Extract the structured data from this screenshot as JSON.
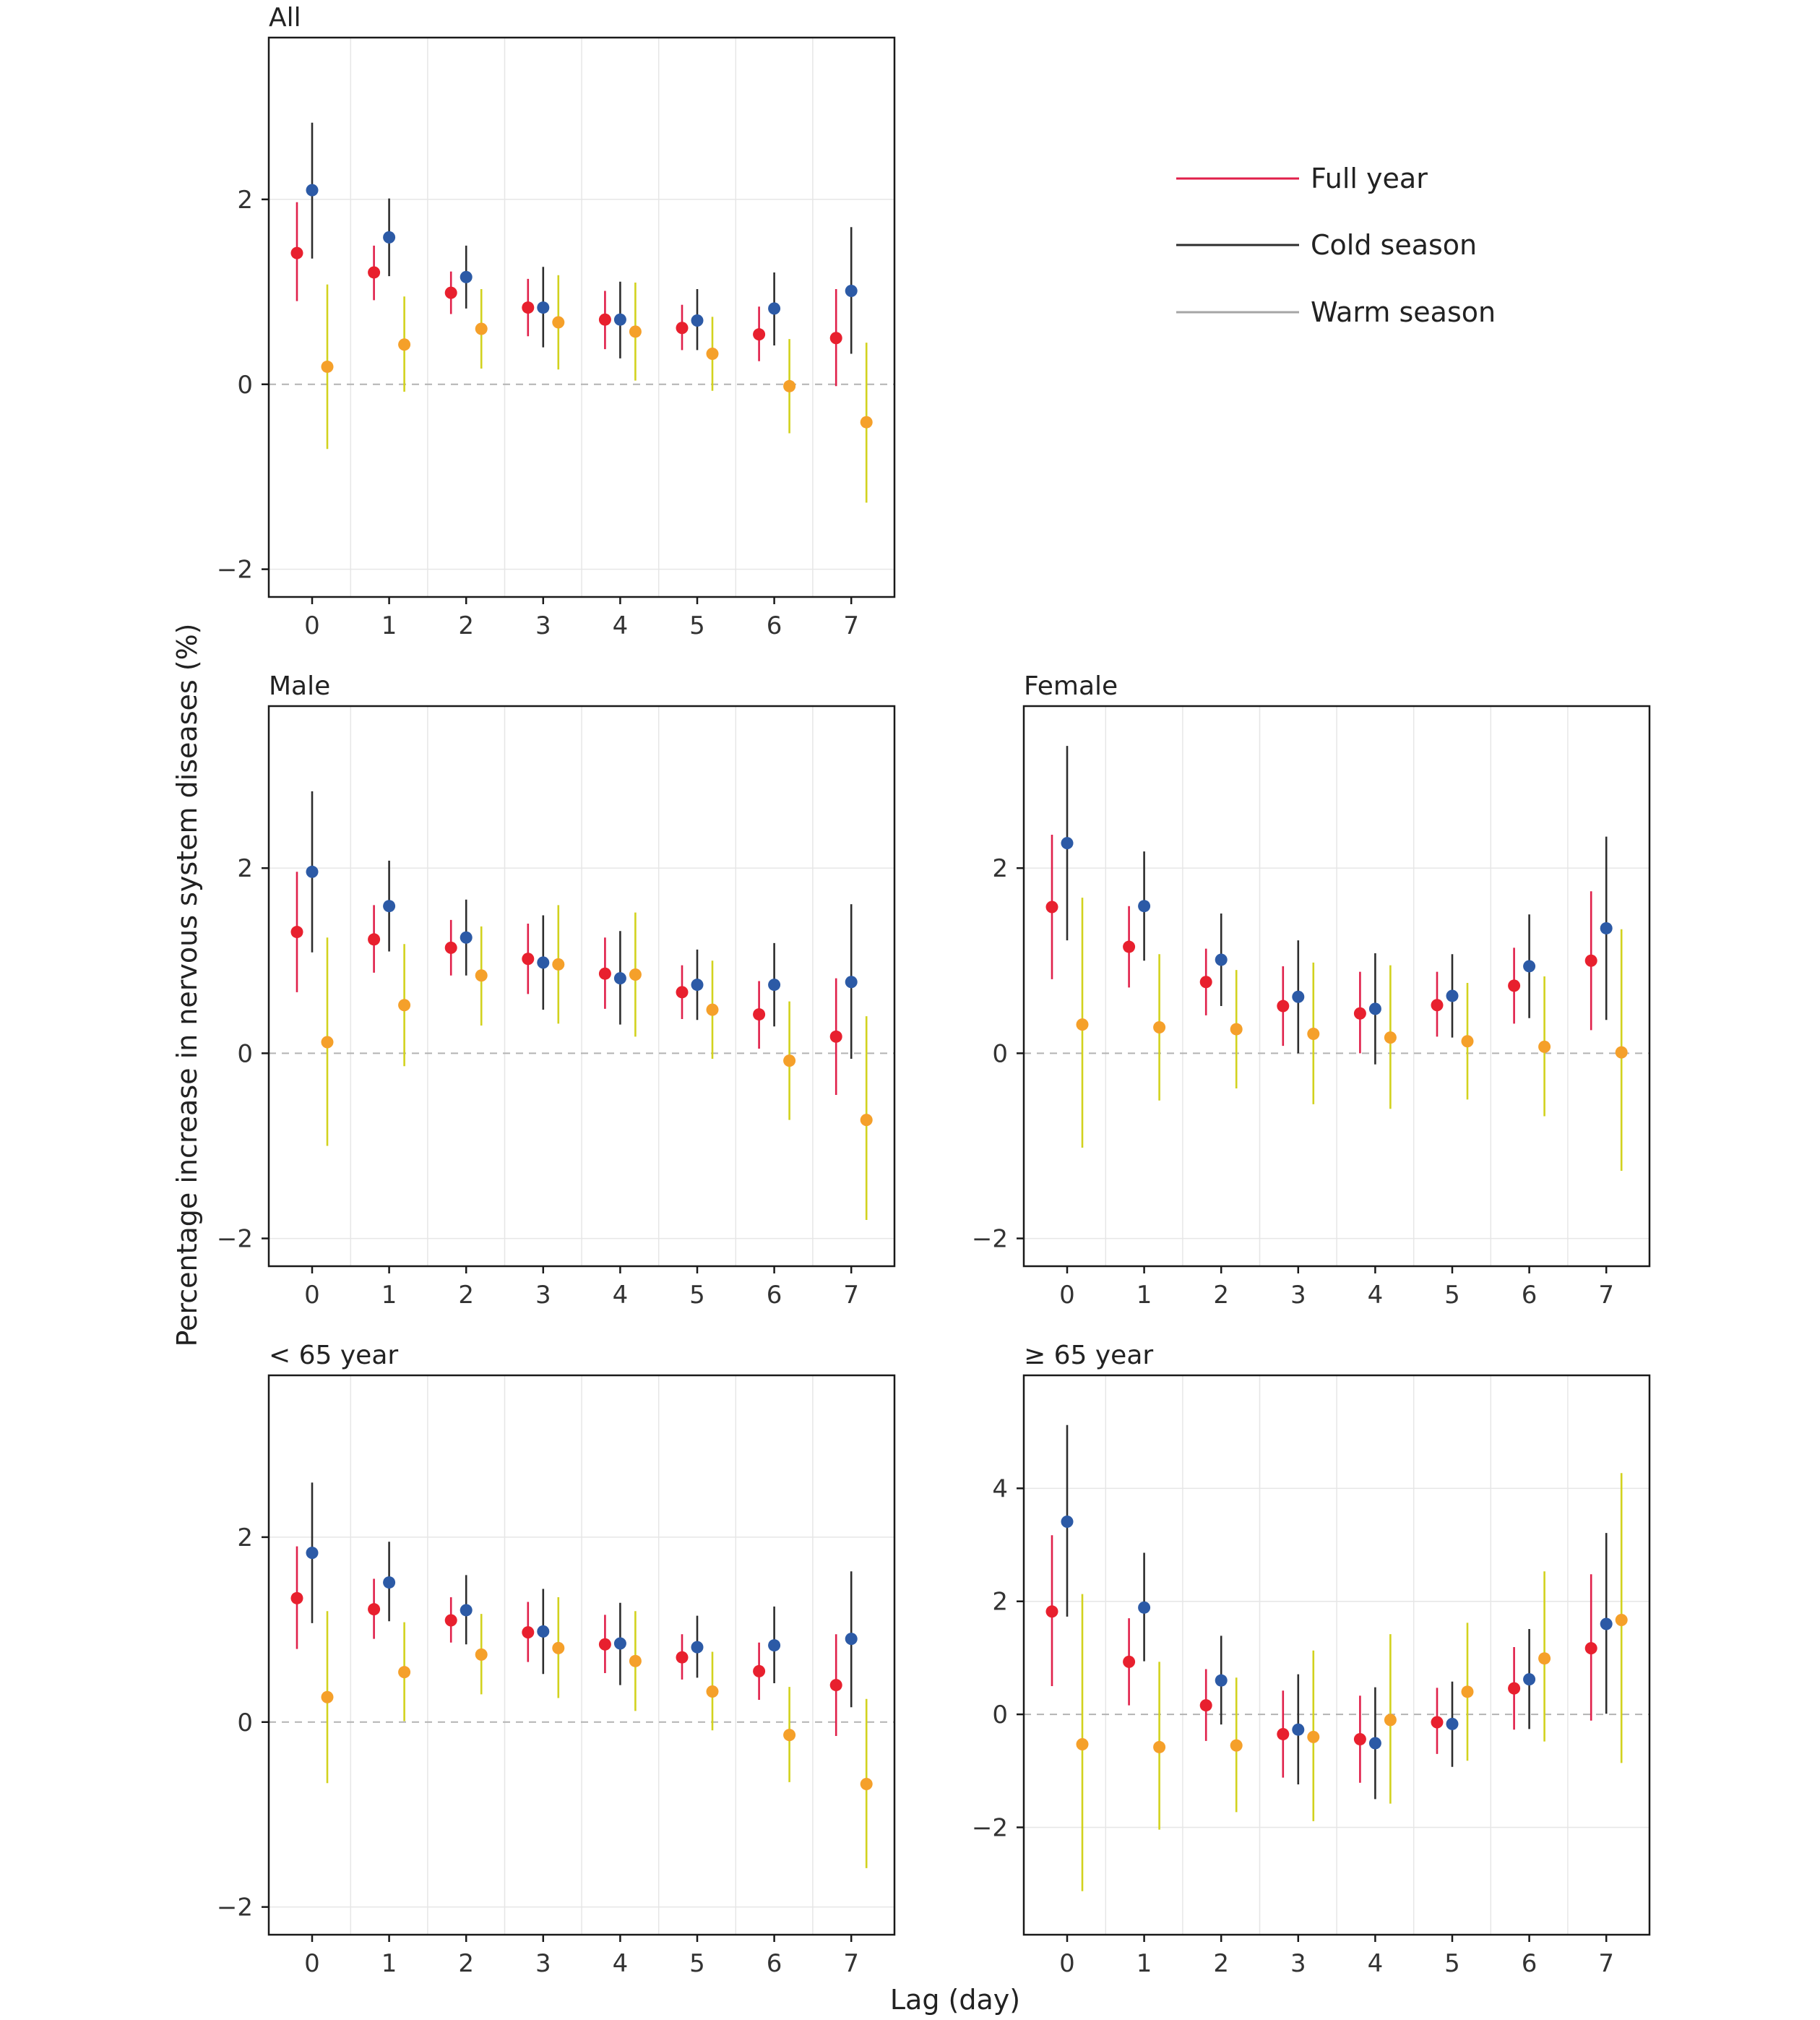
{
  "colors": {
    "full_year": {
      "line": "#e0204a",
      "point": "#e8202e"
    },
    "cold_season": {
      "line": "#2d2d2d",
      "point": "#2c5aa6"
    },
    "warm_season": {
      "line": "#d2d21e",
      "point": "#f5a02a"
    }
  },
  "chart_data": [
    {
      "type": "scatter",
      "subtype": "point-range",
      "title": "All",
      "x": [
        0,
        1,
        2,
        3,
        4,
        5,
        6,
        7
      ],
      "ylim": [
        -2.3,
        3.75
      ],
      "yticks": [
        -2,
        0,
        2
      ],
      "series": [
        {
          "name": "Full year",
          "values": [
            1.42,
            1.21,
            0.99,
            0.83,
            0.7,
            0.61,
            0.54,
            0.5
          ],
          "lower": [
            0.9,
            0.91,
            0.76,
            0.52,
            0.38,
            0.37,
            0.25,
            -0.02
          ],
          "upper": [
            1.97,
            1.5,
            1.22,
            1.14,
            1.01,
            0.86,
            0.84,
            1.03
          ]
        },
        {
          "name": "Cold season",
          "values": [
            2.1,
            1.59,
            1.16,
            0.83,
            0.7,
            0.69,
            0.82,
            1.01
          ],
          "lower": [
            1.36,
            1.17,
            0.82,
            0.4,
            0.28,
            0.37,
            0.42,
            0.33
          ],
          "upper": [
            2.83,
            2.01,
            1.5,
            1.27,
            1.11,
            1.03,
            1.21,
            1.7
          ]
        },
        {
          "name": "Warm season",
          "values": [
            0.19,
            0.43,
            0.6,
            0.67,
            0.57,
            0.33,
            -0.02,
            -0.41
          ],
          "lower": [
            -0.7,
            -0.08,
            0.17,
            0.16,
            0.04,
            -0.07,
            -0.53,
            -1.28
          ],
          "upper": [
            1.08,
            0.95,
            1.03,
            1.18,
            1.1,
            0.73,
            0.49,
            0.45
          ]
        }
      ]
    },
    {
      "type": "scatter",
      "subtype": "point-range",
      "title": "Male",
      "x": [
        0,
        1,
        2,
        3,
        4,
        5,
        6,
        7
      ],
      "ylim": [
        -2.3,
        3.75
      ],
      "yticks": [
        -2,
        0,
        2
      ],
      "series": [
        {
          "name": "Full year",
          "values": [
            1.31,
            1.23,
            1.14,
            1.02,
            0.86,
            0.66,
            0.42,
            0.18
          ],
          "lower": [
            0.66,
            0.87,
            0.84,
            0.64,
            0.48,
            0.37,
            0.05,
            -0.45
          ],
          "upper": [
            1.96,
            1.6,
            1.44,
            1.4,
            1.25,
            0.95,
            0.78,
            0.81
          ]
        },
        {
          "name": "Cold season",
          "values": [
            1.96,
            1.59,
            1.25,
            0.98,
            0.81,
            0.74,
            0.74,
            0.77
          ],
          "lower": [
            1.09,
            1.1,
            0.84,
            0.47,
            0.31,
            0.36,
            0.29,
            -0.06
          ],
          "upper": [
            2.83,
            2.08,
            1.66,
            1.49,
            1.32,
            1.12,
            1.19,
            1.61
          ]
        },
        {
          "name": "Warm season",
          "values": [
            0.12,
            0.52,
            0.84,
            0.96,
            0.85,
            0.47,
            -0.08,
            -0.72
          ],
          "lower": [
            -1.0,
            -0.14,
            0.3,
            0.32,
            0.18,
            -0.06,
            -0.72,
            -1.8
          ],
          "upper": [
            1.25,
            1.18,
            1.37,
            1.6,
            1.52,
            1.0,
            0.56,
            0.4
          ]
        }
      ]
    },
    {
      "type": "scatter",
      "subtype": "point-range",
      "title": "Female",
      "x": [
        0,
        1,
        2,
        3,
        4,
        5,
        6,
        7
      ],
      "ylim": [
        -2.3,
        3.75
      ],
      "yticks": [
        -2,
        0,
        2
      ],
      "series": [
        {
          "name": "Full year",
          "values": [
            1.58,
            1.15,
            0.77,
            0.51,
            0.43,
            0.52,
            0.73,
            1.0
          ],
          "lower": [
            0.8,
            0.71,
            0.41,
            0.08,
            0.0,
            0.18,
            0.32,
            0.25
          ],
          "upper": [
            2.36,
            1.59,
            1.13,
            0.94,
            0.88,
            0.88,
            1.14,
            1.75
          ]
        },
        {
          "name": "Cold season",
          "values": [
            2.27,
            1.59,
            1.01,
            0.61,
            0.48,
            0.62,
            0.94,
            1.35
          ],
          "lower": [
            1.22,
            1.0,
            0.51,
            0.0,
            -0.12,
            0.17,
            0.38,
            0.36
          ],
          "upper": [
            3.32,
            2.18,
            1.51,
            1.22,
            1.08,
            1.07,
            1.5,
            2.34
          ]
        },
        {
          "name": "Warm season",
          "values": [
            0.31,
            0.28,
            0.26,
            0.21,
            0.17,
            0.13,
            0.07,
            0.01
          ],
          "lower": [
            -1.02,
            -0.51,
            -0.38,
            -0.55,
            -0.6,
            -0.5,
            -0.68,
            -1.27
          ],
          "upper": [
            1.68,
            1.07,
            0.9,
            0.98,
            0.95,
            0.76,
            0.83,
            1.34
          ]
        }
      ]
    },
    {
      "type": "scatter",
      "subtype": "point-range",
      "title": "< 65 year",
      "x": [
        0,
        1,
        2,
        3,
        4,
        5,
        6,
        7
      ],
      "ylim": [
        -2.3,
        3.75
      ],
      "yticks": [
        -2,
        0,
        2
      ],
      "series": [
        {
          "name": "Full year",
          "values": [
            1.34,
            1.22,
            1.1,
            0.97,
            0.84,
            0.7,
            0.55,
            0.4
          ],
          "lower": [
            0.79,
            0.9,
            0.86,
            0.65,
            0.53,
            0.46,
            0.24,
            -0.15
          ],
          "upper": [
            1.9,
            1.55,
            1.35,
            1.3,
            1.16,
            0.95,
            0.86,
            0.95
          ]
        },
        {
          "name": "Cold season",
          "values": [
            1.83,
            1.51,
            1.21,
            0.98,
            0.85,
            0.81,
            0.83,
            0.9
          ],
          "lower": [
            1.07,
            1.09,
            0.84,
            0.52,
            0.4,
            0.48,
            0.42,
            0.16
          ],
          "upper": [
            2.59,
            1.95,
            1.59,
            1.44,
            1.29,
            1.15,
            1.25,
            1.63
          ]
        },
        {
          "name": "Warm season",
          "values": [
            0.27,
            0.54,
            0.73,
            0.8,
            0.66,
            0.33,
            -0.14,
            -0.67
          ],
          "lower": [
            -0.66,
            0.01,
            0.3,
            0.26,
            0.12,
            -0.09,
            -0.65,
            -1.58
          ],
          "upper": [
            1.2,
            1.08,
            1.17,
            1.35,
            1.2,
            0.76,
            0.38,
            0.25
          ]
        }
      ]
    },
    {
      "type": "scatter",
      "subtype": "point-range",
      "title": "≥ 65 year",
      "x": [
        0,
        1,
        2,
        3,
        4,
        5,
        6,
        7
      ],
      "ylim": [
        -3.9,
        6.0
      ],
      "yticks": [
        -2,
        0,
        2,
        4
      ],
      "series": [
        {
          "name": "Full year",
          "values": [
            1.82,
            0.93,
            0.16,
            -0.35,
            -0.44,
            -0.14,
            0.46,
            1.17
          ],
          "lower": [
            0.5,
            0.16,
            -0.47,
            -1.12,
            -1.21,
            -0.7,
            -0.27,
            -0.11
          ],
          "upper": [
            3.17,
            1.7,
            0.8,
            0.42,
            0.33,
            0.47,
            1.19,
            2.48
          ]
        },
        {
          "name": "Cold season",
          "values": [
            3.41,
            1.89,
            0.6,
            -0.27,
            -0.51,
            -0.17,
            0.62,
            1.6
          ],
          "lower": [
            1.73,
            0.94,
            -0.18,
            -1.24,
            -1.5,
            -0.93,
            -0.26,
            0.01
          ],
          "upper": [
            5.12,
            2.86,
            1.39,
            0.71,
            0.48,
            0.58,
            1.51,
            3.21
          ]
        },
        {
          "name": "Warm season",
          "values": [
            -0.53,
            -0.58,
            -0.55,
            -0.4,
            -0.1,
            0.4,
            0.99,
            1.67
          ],
          "lower": [
            -3.13,
            -2.04,
            -1.73,
            -1.89,
            -1.58,
            -0.82,
            -0.48,
            -0.86
          ],
          "upper": [
            2.13,
            0.93,
            0.65,
            1.13,
            1.42,
            1.62,
            2.53,
            4.27
          ]
        }
      ]
    }
  ],
  "axes": {
    "xlabel": "Lag (day)",
    "ylabel": "Percentage increase in nervous system diseases (%)"
  },
  "legend": {
    "placement": "top-right",
    "items": [
      "Full year",
      "Cold season",
      "Warm season"
    ]
  }
}
